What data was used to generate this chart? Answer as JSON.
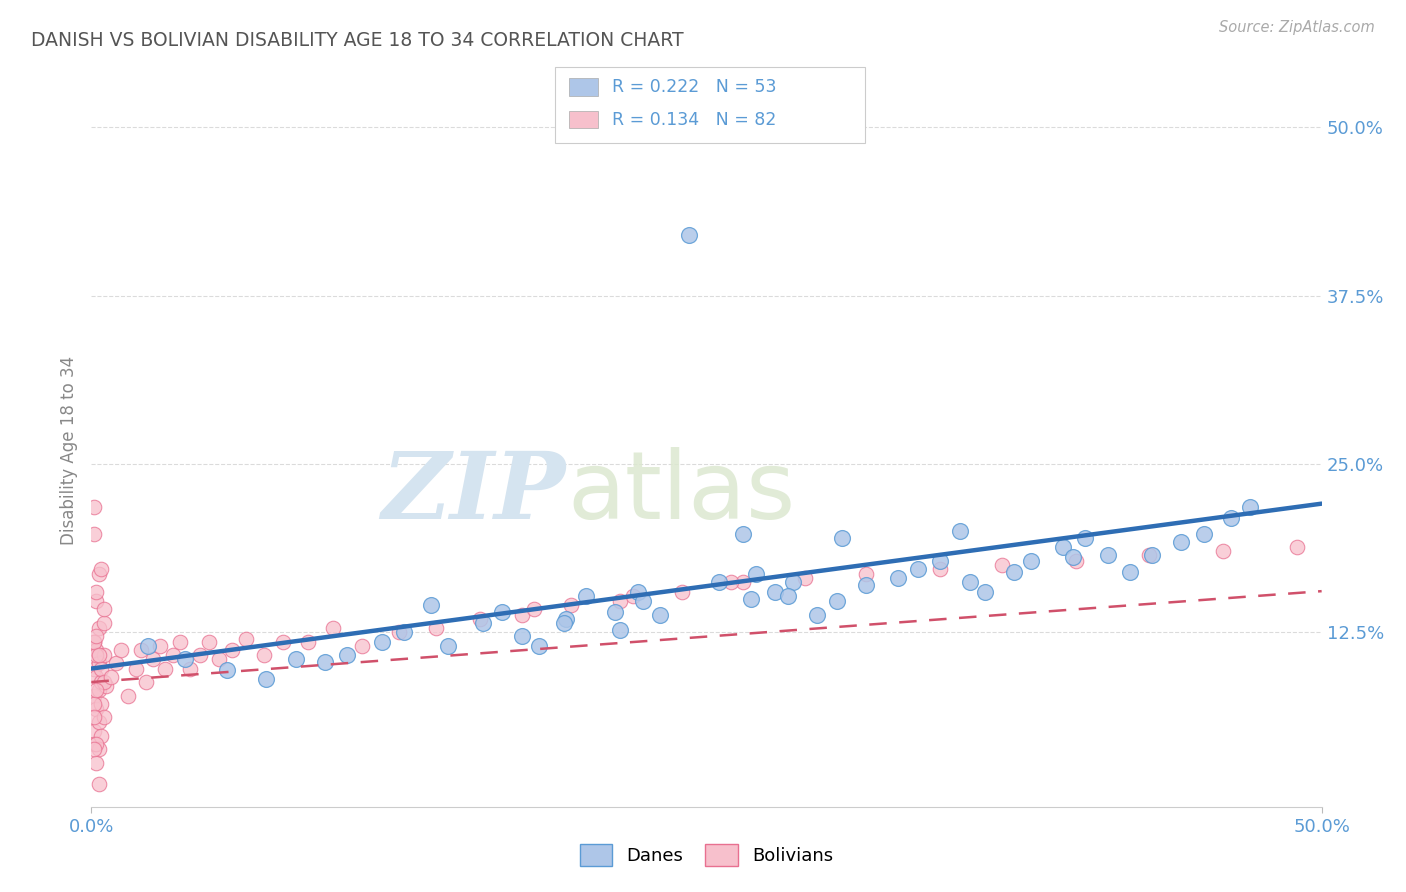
{
  "title": "DANISH VS BOLIVIAN DISABILITY AGE 18 TO 34 CORRELATION CHART",
  "source_text": "Source: ZipAtlas.com",
  "ylabel": "Disability Age 18 to 34",
  "xrange": [
    0.0,
    0.5
  ],
  "yrange": [
    -0.005,
    0.525
  ],
  "yticks": [
    0.0,
    0.125,
    0.25,
    0.375,
    0.5
  ],
  "ytick_labels": [
    "",
    "12.5%",
    "25.0%",
    "37.5%",
    "50.0%"
  ],
  "xtick_left": "0.0%",
  "xtick_right": "50.0%",
  "legend_r_danes": "R = 0.222",
  "legend_n_danes": "N = 53",
  "legend_r_bolivians": "R = 0.134",
  "legend_n_bolivians": "N = 82",
  "legend_label_danes": "Danes",
  "legend_label_bolivians": "Bolivians",
  "color_danes_fill": "#aec6e8",
  "color_danes_edge": "#5b9bd5",
  "color_danes_line": "#2e6db4",
  "color_bolivians_fill": "#f7c0cc",
  "color_bolivians_edge": "#e87090",
  "color_bolivians_line": "#d0506a",
  "color_grid": "#cccccc",
  "color_axis_blue": "#5b9bd5",
  "color_title": "#555555",
  "color_source": "#aaaaaa",
  "danes_intercept": 0.098,
  "danes_slope": 0.245,
  "bolivians_intercept": 0.088,
  "bolivians_slope": 0.135,
  "danes_x": [
    0.023,
    0.038,
    0.055,
    0.071,
    0.083,
    0.095,
    0.104,
    0.118,
    0.127,
    0.138,
    0.145,
    0.159,
    0.167,
    0.175,
    0.182,
    0.193,
    0.201,
    0.213,
    0.222,
    0.231,
    0.243,
    0.255,
    0.268,
    0.27,
    0.278,
    0.285,
    0.295,
    0.303,
    0.315,
    0.328,
    0.336,
    0.345,
    0.357,
    0.363,
    0.375,
    0.382,
    0.395,
    0.404,
    0.413,
    0.422,
    0.431,
    0.443,
    0.452,
    0.463,
    0.471,
    0.215,
    0.265,
    0.283,
    0.305,
    0.224,
    0.192,
    0.399,
    0.353
  ],
  "danes_y": [
    0.115,
    0.105,
    0.097,
    0.09,
    0.105,
    0.103,
    0.108,
    0.118,
    0.125,
    0.145,
    0.115,
    0.132,
    0.14,
    0.122,
    0.115,
    0.135,
    0.152,
    0.14,
    0.155,
    0.138,
    0.42,
    0.162,
    0.15,
    0.168,
    0.155,
    0.162,
    0.138,
    0.148,
    0.16,
    0.165,
    0.172,
    0.178,
    0.162,
    0.155,
    0.17,
    0.178,
    0.188,
    0.195,
    0.182,
    0.17,
    0.182,
    0.192,
    0.198,
    0.21,
    0.218,
    0.127,
    0.198,
    0.152,
    0.195,
    0.148,
    0.132,
    0.181,
    0.2
  ],
  "bolivians_x": [
    0.001,
    0.001,
    0.001,
    0.001,
    0.001,
    0.002,
    0.002,
    0.002,
    0.002,
    0.003,
    0.003,
    0.003,
    0.003,
    0.004,
    0.004,
    0.004,
    0.005,
    0.005,
    0.005,
    0.006,
    0.001,
    0.001,
    0.002,
    0.002,
    0.003,
    0.003,
    0.004,
    0.004,
    0.005,
    0.005,
    0.001,
    0.001,
    0.002,
    0.002,
    0.003,
    0.001,
    0.002,
    0.001,
    0.002,
    0.003,
    0.008,
    0.01,
    0.012,
    0.015,
    0.018,
    0.02,
    0.022,
    0.025,
    0.028,
    0.03,
    0.033,
    0.036,
    0.04,
    0.044,
    0.048,
    0.052,
    0.057,
    0.063,
    0.07,
    0.078,
    0.088,
    0.098,
    0.11,
    0.125,
    0.14,
    0.158,
    0.175,
    0.195,
    0.215,
    0.24,
    0.265,
    0.29,
    0.315,
    0.345,
    0.37,
    0.4,
    0.43,
    0.46,
    0.49,
    0.18,
    0.22,
    0.26
  ],
  "bolivians_y": [
    0.052,
    0.078,
    0.098,
    0.118,
    0.042,
    0.148,
    0.068,
    0.092,
    0.112,
    0.128,
    0.058,
    0.082,
    0.102,
    0.072,
    0.048,
    0.088,
    0.108,
    0.132,
    0.062,
    0.085,
    0.198,
    0.218,
    0.108,
    0.028,
    0.168,
    0.038,
    0.098,
    0.172,
    0.088,
    0.142,
    0.072,
    0.118,
    0.042,
    0.082,
    0.108,
    0.062,
    0.122,
    0.038,
    0.155,
    0.012,
    0.092,
    0.102,
    0.112,
    0.078,
    0.098,
    0.112,
    0.088,
    0.105,
    0.115,
    0.098,
    0.108,
    0.118,
    0.098,
    0.108,
    0.118,
    0.105,
    0.112,
    0.12,
    0.108,
    0.118,
    0.118,
    0.128,
    0.115,
    0.125,
    0.128,
    0.135,
    0.138,
    0.145,
    0.148,
    0.155,
    0.162,
    0.165,
    0.168,
    0.172,
    0.175,
    0.178,
    0.182,
    0.185,
    0.188,
    0.142,
    0.152,
    0.162
  ]
}
